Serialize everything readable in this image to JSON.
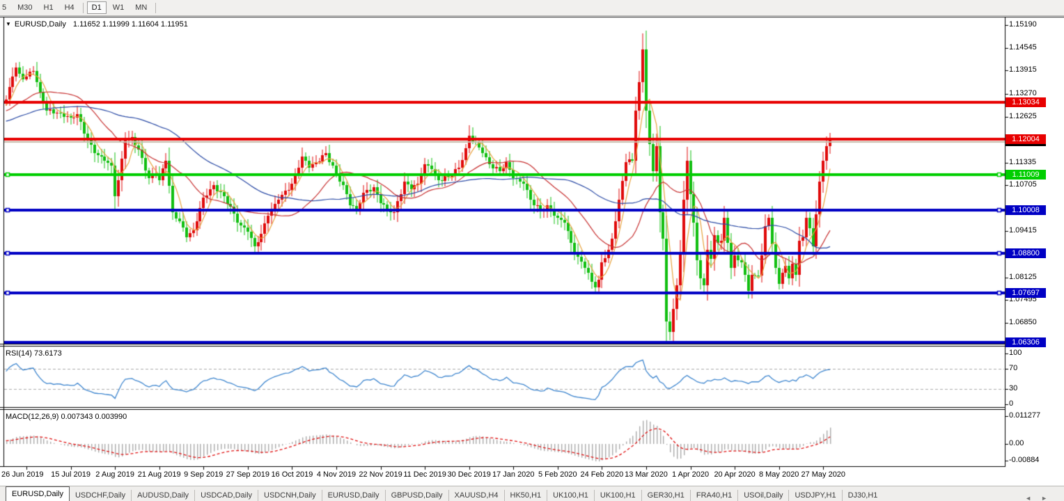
{
  "toolbar": {
    "timeframes": [
      {
        "label": "5",
        "active": false
      },
      {
        "label": "M30",
        "active": false
      },
      {
        "label": "H1",
        "active": false
      },
      {
        "label": "H4",
        "active": false
      },
      {
        "label": "D1",
        "active": true
      },
      {
        "label": "W1",
        "active": false
      },
      {
        "label": "MN",
        "active": false
      }
    ]
  },
  "chart_title": {
    "dropdown_icon": "▼",
    "symbol": "EURUSD,Daily",
    "quotes": "1.11652 1.11999 1.11604 1.11951"
  },
  "price_axis": {
    "ticks": [
      {
        "label": "1.15190",
        "value": 1.1519
      },
      {
        "label": "1.14545",
        "value": 1.14545
      },
      {
        "label": "1.13915",
        "value": 1.13915
      },
      {
        "label": "1.13270",
        "value": 1.1327
      },
      {
        "label": "1.12625",
        "value": 1.12625
      },
      {
        "label": "1.11335",
        "value": 1.11335
      },
      {
        "label": "1.10705",
        "value": 1.10705
      },
      {
        "label": "1.09415",
        "value": 1.09415
      },
      {
        "label": "1.08125",
        "value": 1.08125
      },
      {
        "label": "1.07495",
        "value": 1.07495
      },
      {
        "label": "1.06850",
        "value": 1.0685
      },
      {
        "label": "1.06205",
        "value": 1.06205
      }
    ]
  },
  "chart_data": {
    "type": "candlestick",
    "symbol": "EURUSD",
    "period": "Daily",
    "ohlc_display": {
      "open": "1.11652",
      "high": "1.11999",
      "low": "1.11604",
      "close": "1.11951"
    },
    "x_labels": [
      {
        "label": "26 Jun 2019",
        "bar": 0
      },
      {
        "label": "15 Jul 2019",
        "bar": 13
      },
      {
        "label": "2 Aug 2019",
        "bar": 26
      },
      {
        "label": "21 Aug 2019",
        "bar": 39
      },
      {
        "label": "9 Sep 2019",
        "bar": 52
      },
      {
        "label": "27 Sep 2019",
        "bar": 65
      },
      {
        "label": "16 Oct 2019",
        "bar": 78
      },
      {
        "label": "4 Nov 2019",
        "bar": 91
      },
      {
        "label": "22 Nov 2019",
        "bar": 104
      },
      {
        "label": "11 Dec 2019",
        "bar": 117
      },
      {
        "label": "30 Dec 2019",
        "bar": 130
      },
      {
        "label": "17 Jan 2020",
        "bar": 143
      },
      {
        "label": "5 Feb 2020",
        "bar": 156
      },
      {
        "label": "24 Feb 2020",
        "bar": 169
      },
      {
        "label": "13 Mar 2020",
        "bar": 182
      },
      {
        "label": "1 Apr 2020",
        "bar": 195
      },
      {
        "label": "20 Apr 2020",
        "bar": 208
      },
      {
        "label": "8 May 2020",
        "bar": 221
      },
      {
        "label": "27 May 2020",
        "bar": 234
      }
    ],
    "prehistory": {
      "count": 50,
      "from": 1.12,
      "to": 1.1295
    },
    "lead_in": [
      1.131,
      1.1345,
      1.1375,
      1.14,
      1.1382,
      1.1368
    ],
    "pivots": [
      [
        0,
        1.1375
      ],
      [
        2,
        1.139
      ],
      [
        4,
        1.133
      ],
      [
        6,
        1.128
      ],
      [
        10,
        1.1272
      ],
      [
        13,
        1.1259
      ],
      [
        15,
        1.127
      ],
      [
        17,
        1.1215
      ],
      [
        20,
        1.116
      ],
      [
        23,
        1.114
      ],
      [
        25,
        1.1125
      ],
      [
        26,
        1.104
      ],
      [
        27,
        1.1085
      ],
      [
        29,
        1.1195
      ],
      [
        31,
        1.1205
      ],
      [
        33,
        1.117
      ],
      [
        36,
        1.109
      ],
      [
        38,
        1.1105
      ],
      [
        39,
        1.1085
      ],
      [
        41,
        1.114
      ],
      [
        43,
        1.0995
      ],
      [
        45,
        1.097
      ],
      [
        47,
        1.0925
      ],
      [
        49,
        1.0945
      ],
      [
        52,
        1.1035
      ],
      [
        55,
        1.107
      ],
      [
        58,
        1.104
      ],
      [
        60,
        1.101
      ],
      [
        62,
        1.0965
      ],
      [
        65,
        1.094
      ],
      [
        67,
        1.09
      ],
      [
        69,
        1.0935
      ],
      [
        71,
        1.0985
      ],
      [
        74,
        1.103
      ],
      [
        78,
        1.1075
      ],
      [
        81,
        1.115
      ],
      [
        83,
        1.112
      ],
      [
        85,
        1.1135
      ],
      [
        88,
        1.116
      ],
      [
        91,
        1.1105
      ],
      [
        93,
        1.107
      ],
      [
        95,
        1.1015
      ],
      [
        97,
        1.1005
      ],
      [
        99,
        1.105
      ],
      [
        102,
        1.1065
      ],
      [
        104,
        1.102
      ],
      [
        106,
        1.1005
      ],
      [
        108,
        1.0995
      ],
      [
        111,
        1.108
      ],
      [
        113,
        1.106
      ],
      [
        115,
        1.1075
      ],
      [
        117,
        1.113
      ],
      [
        119,
        1.1115
      ],
      [
        121,
        1.1085
      ],
      [
        124,
        1.1095
      ],
      [
        127,
        1.112
      ],
      [
        129,
        1.1175
      ],
      [
        130,
        1.121
      ],
      [
        132,
        1.119
      ],
      [
        134,
        1.116
      ],
      [
        136,
        1.113
      ],
      [
        139,
        1.111
      ],
      [
        141,
        1.1135
      ],
      [
        143,
        1.109
      ],
      [
        146,
        1.1075
      ],
      [
        148,
        1.103
      ],
      [
        151,
        1.1
      ],
      [
        153,
        1.1015
      ],
      [
        156,
        1.098
      ],
      [
        158,
        1.0965
      ],
      [
        160,
        1.091
      ],
      [
        162,
        1.087
      ],
      [
        164,
        1.084
      ],
      [
        166,
        1.08
      ],
      [
        167,
        1.0785
      ],
      [
        168,
        1.0805
      ],
      [
        169,
        1.0855
      ],
      [
        171,
        1.089
      ],
      [
        172,
        1.092
      ],
      [
        174,
        1.103
      ],
      [
        176,
        1.1135
      ],
      [
        178,
        1.114
      ],
      [
        179,
        1.128
      ],
      [
        180,
        1.136
      ],
      [
        181,
        1.145
      ],
      [
        182,
        1.128
      ],
      [
        183,
        1.1185
      ],
      [
        184,
        1.111
      ],
      [
        185,
        1.118
      ],
      [
        186,
        1.0995
      ],
      [
        187,
        1.092
      ],
      [
        188,
        1.069
      ],
      [
        189,
        1.066
      ],
      [
        190,
        1.0725
      ],
      [
        191,
        1.079
      ],
      [
        192,
        1.088
      ],
      [
        193,
        1.103
      ],
      [
        194,
        1.114
      ],
      [
        195,
        1.1045
      ],
      [
        196,
        1.0965
      ],
      [
        197,
        1.086
      ],
      [
        198,
        1.081
      ],
      [
        199,
        1.079
      ],
      [
        200,
        1.089
      ],
      [
        201,
        1.0865
      ],
      [
        202,
        1.093
      ],
      [
        203,
        1.091
      ],
      [
        204,
        1.0915
      ],
      [
        205,
        1.098
      ],
      [
        206,
        1.091
      ],
      [
        207,
        1.084
      ],
      [
        208,
        1.0875
      ],
      [
        210,
        1.0855
      ],
      [
        211,
        1.082
      ],
      [
        212,
        1.0775
      ],
      [
        213,
        1.082
      ],
      [
        215,
        1.0818
      ],
      [
        216,
        1.0875
      ],
      [
        217,
        1.0955
      ],
      [
        218,
        1.098
      ],
      [
        219,
        1.0905
      ],
      [
        220,
        1.084
      ],
      [
        221,
        1.0795
      ],
      [
        223,
        1.0845
      ],
      [
        224,
        1.081
      ],
      [
        225,
        1.085
      ],
      [
        226,
        1.082
      ],
      [
        227,
        1.0915
      ],
      [
        228,
        1.0925
      ],
      [
        229,
        1.098
      ],
      [
        230,
        1.095
      ],
      [
        231,
        1.09
      ],
      [
        232,
        1.099
      ],
      [
        233,
        1.108
      ],
      [
        234,
        1.114
      ],
      [
        235,
        1.118
      ],
      [
        236,
        1.1195
      ]
    ],
    "wick_overrides": [
      {
        "i": 26,
        "low": 1.1027
      },
      {
        "i": 67,
        "low": 1.0879
      },
      {
        "i": 130,
        "high": 1.1239
      },
      {
        "i": 181,
        "high": 1.1495
      },
      {
        "i": 188,
        "low": 1.0636
      },
      {
        "i": 189,
        "low": 1.0636
      },
      {
        "i": 236,
        "high": 1.12
      }
    ],
    "moving_averages": [
      {
        "period": 5,
        "color": "#E8A33D"
      },
      {
        "period": 20,
        "color": "#C83232"
      },
      {
        "period": 50,
        "color": "#2B4BA6"
      }
    ],
    "hlines": [
      {
        "price": 1.13034,
        "label": "1.13034",
        "color": "red"
      },
      {
        "price": 1.12004,
        "label": "1.12004",
        "color": "red"
      },
      {
        "price": 1.11009,
        "label": "1.11009",
        "color": "green",
        "handles": true
      },
      {
        "price": 1.10008,
        "label": "1.10008",
        "color": "blue",
        "handles": true
      },
      {
        "price": 1.088,
        "label": "1.08800",
        "color": "blue",
        "handles": true
      },
      {
        "price": 1.07697,
        "label": "1.07697",
        "color": "blue",
        "handles": true
      },
      {
        "price": 1.06306,
        "label": "1.06306",
        "color": "blue"
      }
    ],
    "current_price": {
      "value": 1.11951,
      "label": "1.11951"
    }
  },
  "rsi": {
    "label": "RSI(14) 73.6173",
    "value": 73.6173,
    "levels": [
      70,
      30
    ],
    "axis": [
      {
        "label": "100",
        "value": 100
      },
      {
        "label": "70",
        "value": 70
      },
      {
        "label": "30",
        "value": 30
      },
      {
        "label": "0",
        "value": 0
      }
    ]
  },
  "macd": {
    "label": "MACD(12,26,9) 0.007343 0.003990",
    "main": 0.007343,
    "signal": 0.00399,
    "axis": [
      {
        "label": "0.011277",
        "value": 0.011277
      },
      {
        "label": "0.00",
        "value": 0
      },
      {
        "label": "-0.00884",
        "value": -0.00884
      }
    ]
  },
  "tabs": {
    "items": [
      {
        "label": "EURUSD,Daily",
        "active": true
      },
      {
        "label": "USDCHF,Daily",
        "active": false
      },
      {
        "label": "AUDUSD,Daily",
        "active": false
      },
      {
        "label": "USDCAD,Daily",
        "active": false
      },
      {
        "label": "USDCNH,Daily",
        "active": false
      },
      {
        "label": "EURUSD,Daily",
        "active": false
      },
      {
        "label": "GBPUSD,Daily",
        "active": false
      },
      {
        "label": "XAUUSD,H4",
        "active": false
      },
      {
        "label": "HK50,H1",
        "active": false
      },
      {
        "label": "UK100,H1",
        "active": false
      },
      {
        "label": "UK100,H1",
        "active": false
      },
      {
        "label": "GER30,H1",
        "active": false
      },
      {
        "label": "FRA40,H1",
        "active": false
      },
      {
        "label": "USOil,Daily",
        "active": false
      },
      {
        "label": "USDJPY,H1",
        "active": false
      },
      {
        "label": "DJ30,H1",
        "active": false
      }
    ],
    "scroll_left": "◄",
    "scroll_right": "►"
  },
  "colors": {
    "bull_candle": "#E00B0B",
    "bear_candle": "#12BF12",
    "line_red": "#E80000",
    "line_green": "#00CE00",
    "line_blue": "#0000C4",
    "current_price_line": "#C6BCAC",
    "badge_current_bg": "#000000",
    "rsi_line": "#3E86CF",
    "level_dash": "#ABABAB",
    "macd_bar": "#ABABAB",
    "macd_signal": "#E01010",
    "frame": "#000000",
    "panel_bg": "#FFFFFF"
  }
}
